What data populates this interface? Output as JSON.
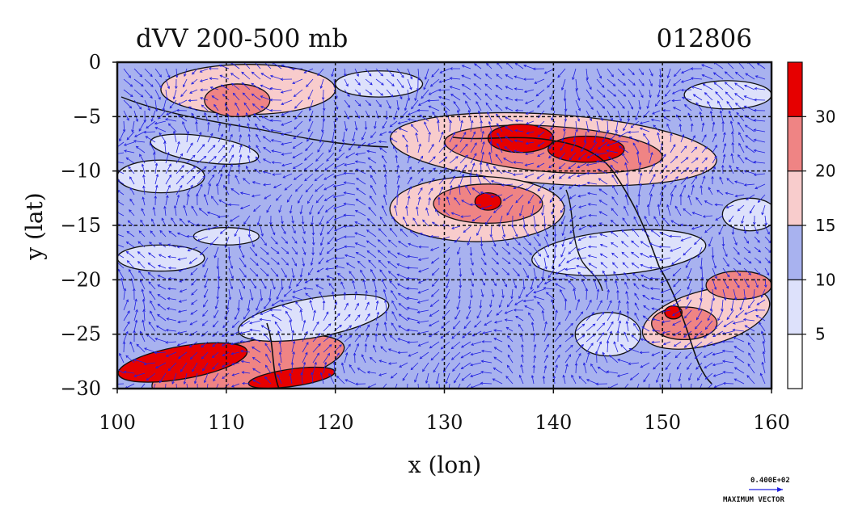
{
  "chart_data": {
    "type": "heatmap",
    "title": "dVV 200-500 mb",
    "date_label": "012806",
    "xlabel": "x (lon)",
    "ylabel": "y (lat)",
    "xlim": [
      100,
      160
    ],
    "ylim": [
      -30,
      0
    ],
    "xticks": [
      100,
      110,
      120,
      130,
      140,
      150,
      160
    ],
    "yticks": [
      0,
      -5,
      -10,
      -15,
      -20,
      -25,
      -30
    ],
    "grid": true,
    "colorbar": {
      "levels": [
        0,
        5,
        10,
        15,
        20,
        30
      ],
      "tick_labels": [
        5,
        10,
        15,
        20,
        30
      ],
      "colors": [
        "#ffffff",
        "#dde1fb",
        "#a8b2ef",
        "#f8cccc",
        "#ef8484",
        "#e60000"
      ]
    },
    "vector_key": {
      "magnitude_label": "0.400E+02",
      "caption": "MAXIMUM VECTOR",
      "color": "#2020e0"
    },
    "fields": {
      "background_level": 10,
      "regions": [
        {
          "lon": 112,
          "lat": -28.0,
          "rx": 9,
          "ry": 2.3,
          "tilt": -12,
          "level": 20
        },
        {
          "lon": 106,
          "lat": -27.6,
          "rx": 6,
          "ry": 1.5,
          "tilt": -10,
          "level": 30
        },
        {
          "lon": 116,
          "lat": -29.0,
          "rx": 4,
          "ry": 0.8,
          "tilt": -8,
          "level": 30
        },
        {
          "lon": 140,
          "lat": -8.0,
          "rx": 15,
          "ry": 3.2,
          "tilt": 4,
          "level": 15
        },
        {
          "lon": 133,
          "lat": -13.5,
          "rx": 8,
          "ry": 3.0,
          "tilt": 0,
          "level": 15
        },
        {
          "lon": 140,
          "lat": -8.0,
          "rx": 10,
          "ry": 2.1,
          "tilt": 4,
          "level": 20
        },
        {
          "lon": 134,
          "lat": -13.0,
          "rx": 5,
          "ry": 1.8,
          "tilt": 0,
          "level": 20
        },
        {
          "lon": 137,
          "lat": -7.0,
          "rx": 3,
          "ry": 1.3,
          "tilt": 0,
          "level": 30
        },
        {
          "lon": 143,
          "lat": -8.0,
          "rx": 3.5,
          "ry": 1.2,
          "tilt": 0,
          "level": 30
        },
        {
          "lon": 134,
          "lat": -12.8,
          "rx": 1.2,
          "ry": 0.8,
          "tilt": 0,
          "level": 30
        },
        {
          "lon": 112,
          "lat": -2.5,
          "rx": 8,
          "ry": 2.3,
          "tilt": 0,
          "level": 15
        },
        {
          "lon": 111,
          "lat": -3.5,
          "rx": 3,
          "ry": 1.5,
          "tilt": 0,
          "level": 20
        },
        {
          "lon": 154,
          "lat": -23.5,
          "rx": 6,
          "ry": 2.5,
          "tilt": -15,
          "level": 15
        },
        {
          "lon": 152,
          "lat": -24.0,
          "rx": 3,
          "ry": 1.5,
          "tilt": 0,
          "level": 20
        },
        {
          "lon": 151,
          "lat": -23.0,
          "rx": 0.8,
          "ry": 0.6,
          "tilt": 0,
          "level": 30
        },
        {
          "lon": 157,
          "lat": -20.5,
          "rx": 3,
          "ry": 1.3,
          "tilt": 0,
          "level": 20
        },
        {
          "lon": 108,
          "lat": -8.0,
          "rx": 5,
          "ry": 1.2,
          "tilt": 8,
          "level": 5
        },
        {
          "lon": 104,
          "lat": -10.5,
          "rx": 4,
          "ry": 1.5,
          "tilt": 0,
          "level": 5
        },
        {
          "lon": 118,
          "lat": -23.5,
          "rx": 7,
          "ry": 1.8,
          "tilt": -10,
          "level": 5
        },
        {
          "lon": 104,
          "lat": -18.0,
          "rx": 4,
          "ry": 1.2,
          "tilt": 0,
          "level": 5
        },
        {
          "lon": 146,
          "lat": -17.5,
          "rx": 8,
          "ry": 2.0,
          "tilt": -5,
          "level": 5
        },
        {
          "lon": 145,
          "lat": -25.0,
          "rx": 3,
          "ry": 2.0,
          "tilt": 0,
          "level": 5
        },
        {
          "lon": 158,
          "lat": -14.0,
          "rx": 2.5,
          "ry": 1.5,
          "tilt": 0,
          "level": 5
        },
        {
          "lon": 156,
          "lat": -3.0,
          "rx": 4,
          "ry": 1.3,
          "tilt": 0,
          "level": 5
        },
        {
          "lon": 124,
          "lat": -2.0,
          "rx": 4,
          "ry": 1.2,
          "tilt": 0,
          "level": 5
        },
        {
          "lon": 110,
          "lat": -16.0,
          "rx": 3,
          "ry": 0.8,
          "tilt": 0,
          "level": 5
        }
      ]
    }
  }
}
